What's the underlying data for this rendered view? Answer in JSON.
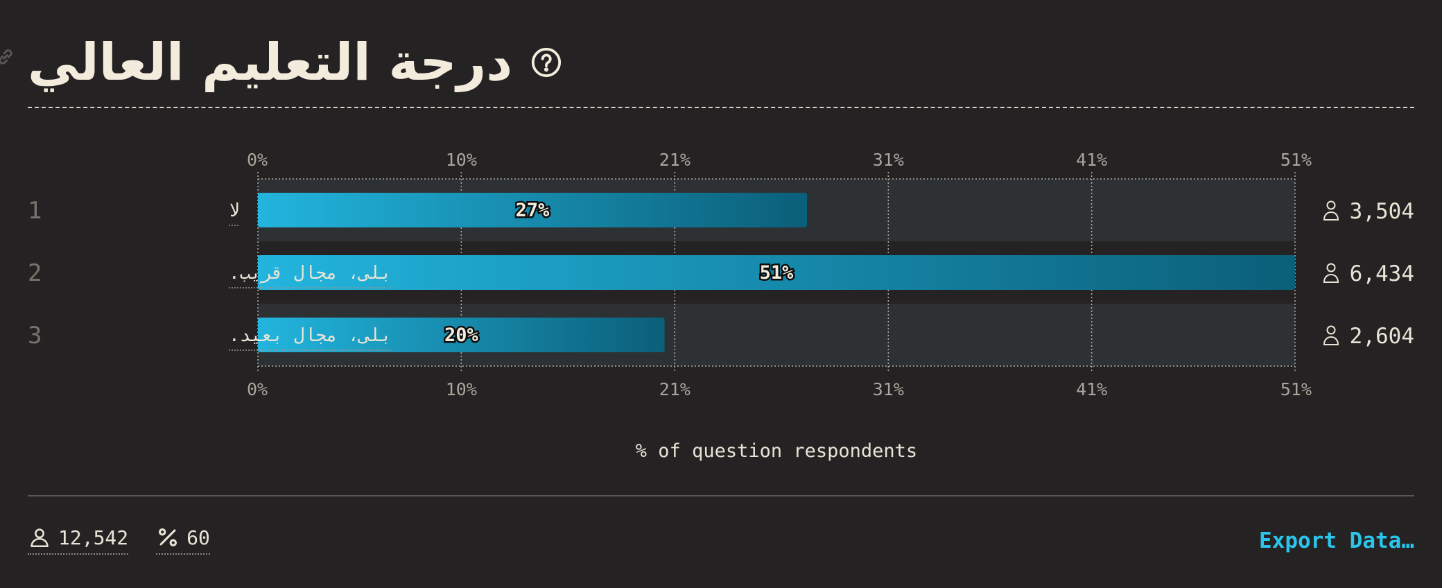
{
  "title": "درجة التعليم العالي",
  "icons": {
    "link": "link-icon",
    "help": "help-icon",
    "respondents": "person-icon",
    "percent": "percent-icon"
  },
  "colors": {
    "background": "#252223",
    "track": "#2d3134",
    "bar_start": "#22b5de",
    "bar_end": "#0b5f79",
    "accent": "#2bc4ea"
  },
  "chart_data": {
    "type": "bar",
    "orientation": "horizontal",
    "categories": [
      "لا",
      "بلى، مجال قريب.",
      "بلى، مجال بعيد."
    ],
    "rank": [
      "1",
      "2",
      "3"
    ],
    "values": [
      27,
      51,
      20
    ],
    "value_labels": [
      "27%",
      "51%",
      "20%"
    ],
    "counts": [
      "3,504",
      "6,434",
      "2,604"
    ],
    "xlim": [
      0,
      51
    ],
    "tick_values": [
      0,
      10,
      20.5,
      31,
      41,
      51
    ],
    "tick_labels": [
      "0%",
      "10%",
      "21%",
      "31%",
      "41%",
      "51%"
    ],
    "xlabel": "% of question respondents",
    "grid": true
  },
  "footer": {
    "respondents": "12,542",
    "percent": "60",
    "export_label": "Export Data…"
  }
}
